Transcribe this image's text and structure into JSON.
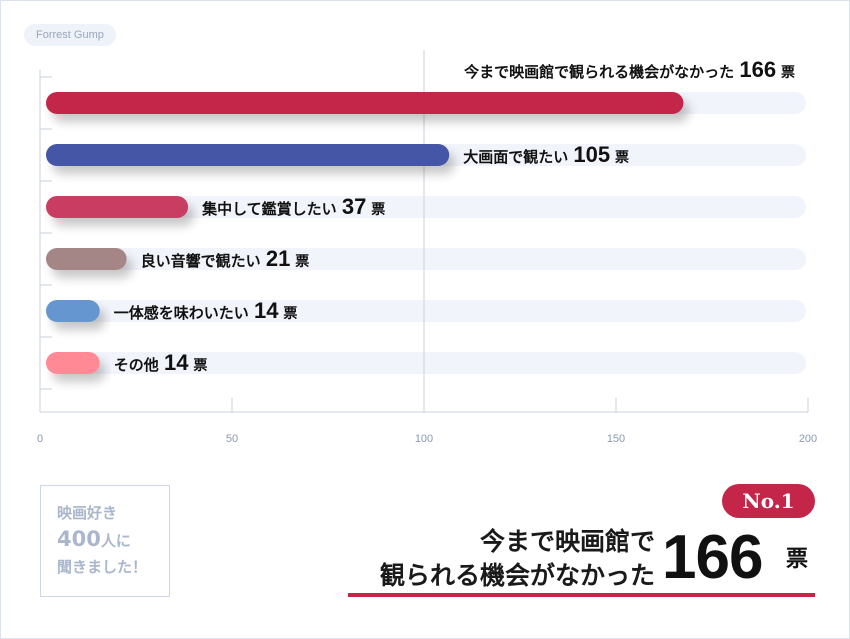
{
  "tag": "Forrest Gump",
  "chart_data": {
    "type": "bar",
    "orientation": "horizontal",
    "unit": "票",
    "categories": [
      "今まで映画館で観られる機会がなかった",
      "大画面で観たい",
      "集中して鑑賞したい",
      "良い音響で観たい",
      "一体感を味わいたい",
      "その他"
    ],
    "values": [
      166,
      105,
      37,
      21,
      14,
      14
    ],
    "colors": [
      "#c4264a",
      "#4456a6",
      "#c93e63",
      "#a58686",
      "#6696d0",
      "#ff8a96"
    ],
    "xlim": [
      0,
      200
    ],
    "xticks": [
      "0",
      "50",
      "100",
      "150",
      "200"
    ],
    "grid": true
  },
  "badge": {
    "line1": "映画好き",
    "line2_num": "400",
    "line2_text": "人に",
    "line3": "聞きました！"
  },
  "highlight": {
    "rank": "No.1",
    "title_line1": "今まで映画館で",
    "title_line2": "観られる機会がなかった",
    "value": "166",
    "unit": "票"
  }
}
